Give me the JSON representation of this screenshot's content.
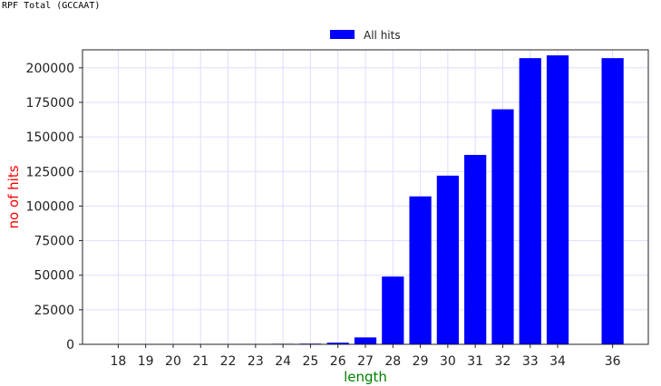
{
  "page": {
    "title": "RPF Total (GCCAAT)"
  },
  "chart_data": {
    "type": "bar",
    "xlabel": "length",
    "ylabel": "no of hits",
    "xlabel_color": "#008000",
    "ylabel_color": "#ff0000",
    "bar_color": "#0000ff",
    "grid": true,
    "grid_color": "#ddddff",
    "legend_position": "top-center",
    "xlim": [
      16.7,
      37.3
    ],
    "ylim": [
      0,
      213000
    ],
    "yticks": [
      0,
      25000,
      50000,
      75000,
      100000,
      125000,
      150000,
      175000,
      200000
    ],
    "xticks": [
      18,
      19,
      20,
      21,
      22,
      23,
      24,
      25,
      26,
      27,
      28,
      29,
      30,
      31,
      32,
      33,
      34,
      36
    ],
    "series": [
      {
        "name": "All hits",
        "x": [
          18,
          19,
          20,
          21,
          22,
          23,
          24,
          25,
          26,
          27,
          28,
          29,
          30,
          31,
          32,
          33,
          34,
          36
        ],
        "values": [
          0,
          0,
          0,
          0,
          0,
          0,
          400,
          500,
          1200,
          5000,
          49000,
          107000,
          122000,
          137000,
          170000,
          207000,
          209000,
          207000
        ]
      }
    ]
  }
}
